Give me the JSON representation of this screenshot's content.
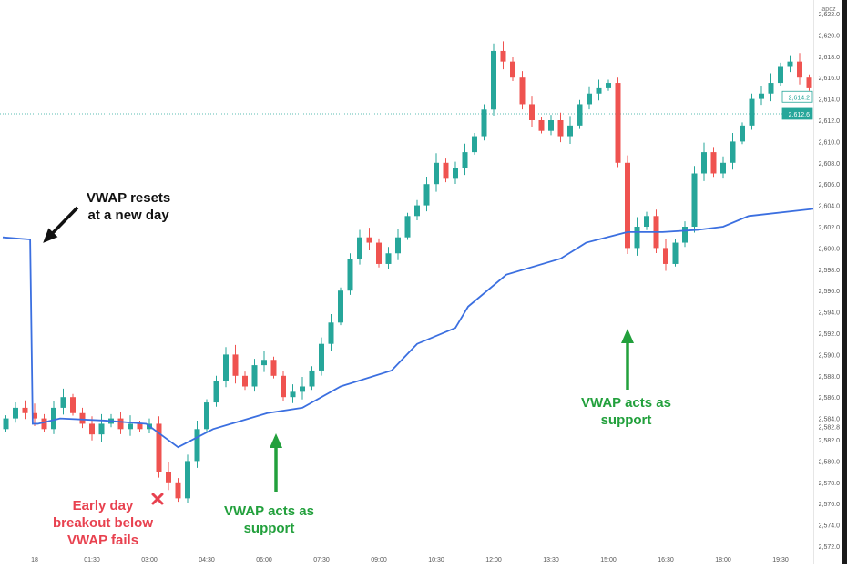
{
  "chart_data": {
    "type": "candlestick",
    "title": "",
    "y_ticks": [
      2622,
      2620,
      2618,
      2616,
      2614,
      2612,
      2610,
      2608,
      2606,
      2604,
      2602,
      2600,
      2598,
      2596,
      2594,
      2592,
      2590,
      2588,
      2586,
      2584,
      2582,
      2580,
      2578,
      2576,
      2574,
      2572
    ],
    "y_tick_labels": [
      "2,622.0",
      "2,620.0",
      "2,618.0",
      "2,616.0",
      "2,614.0",
      "2,612.0",
      "2,610.0",
      "2,608.0",
      "2,606.0",
      "2,604.0",
      "2,602.0",
      "2,600.0",
      "2,598.0",
      "2,596.0",
      "2,594.0",
      "2,592.0",
      "2,590.0",
      "2,588.0",
      "2,586.0",
      "2,584.0",
      "2,582.0",
      "2,580.0",
      "2,578.0",
      "2,576.0",
      "2,574.0",
      "2,572.0"
    ],
    "ylim": [
      2571,
      2623.5
    ],
    "x_tick_labels": [
      "18",
      "01:30",
      "03:00",
      "04:30",
      "06:00",
      "07:30",
      "09:00",
      "10:30",
      "12:00",
      "13:30",
      "15:00",
      "16:30",
      "18:00",
      "19:30"
    ],
    "x_tick_minutes": [
      0,
      90,
      180,
      270,
      360,
      450,
      540,
      630,
      720,
      810,
      900,
      990,
      1080,
      1170
    ],
    "bar_minutes": 15,
    "start_minute": -45,
    "closes": [
      2584,
      2585,
      2584.5,
      2584,
      2583,
      2585,
      2586,
      2584.5,
      2583.5,
      2582.5,
      2583.5,
      2584,
      2583,
      2583.5,
      2583,
      2583.5,
      2579,
      2578,
      2576.5,
      2580,
      2583,
      2585.5,
      2587.5,
      2590,
      2588,
      2587,
      2589,
      2589.5,
      2588,
      2586,
      2586.5,
      2587,
      2588.5,
      2591,
      2593,
      2596,
      2599,
      2601,
      2600.5,
      2598.5,
      2599.5,
      2601,
      2603,
      2604,
      2606,
      2608,
      2606.5,
      2607.5,
      2609,
      2610.5,
      2613,
      2618.5,
      2617.5,
      2616,
      2613.5,
      2612,
      2611,
      2612,
      2610.5,
      2611.5,
      2613.5,
      2614.5,
      2615,
      2615.5,
      2608,
      2600,
      2602,
      2603,
      2600,
      2598.5,
      2600.5,
      2602,
      2607,
      2609,
      2607,
      2608,
      2610,
      2611.5,
      2614,
      2614.5,
      2615.5,
      2617,
      2617.5,
      2616,
      2615,
      2615.5,
      2615.5,
      2613,
      2612.6
    ],
    "first_open": 2583,
    "vwap": {
      "name": "VWAP",
      "minutes": [
        -50,
        -7,
        -3,
        5,
        40,
        110,
        175,
        225,
        280,
        365,
        420,
        480,
        560,
        600,
        660,
        680,
        740,
        825,
        865,
        930,
        985,
        1040,
        1080,
        1120,
        1225
      ],
      "values": [
        2601,
        2600.8,
        2583.5,
        2583.5,
        2584,
        2583.8,
        2583.5,
        2581.3,
        2583,
        2584.5,
        2585,
        2587,
        2588.5,
        2591,
        2592.5,
        2594.5,
        2597.5,
        2599,
        2600.5,
        2601.5,
        2601.5,
        2601.7,
        2602,
        2603,
        2603.7
      ]
    },
    "last_price": {
      "value": 2612.6,
      "label": "2,612.6"
    },
    "prev_price": {
      "value": 2614.2,
      "label": "2,614.2"
    },
    "extra_axis_label": {
      "value": 2582.8,
      "label": "2,582.8"
    },
    "colors": {
      "up": "#26a69a",
      "down": "#ef5350",
      "vwap": "#3b6fe0"
    }
  },
  "axis_header": "apoz",
  "annotations": {
    "reset": "VWAP resets\nat a new day",
    "breakout": "Early day\nbreakout below\nVWAP fails",
    "support1": "VWAP acts as\nsupport",
    "support2": "VWAP acts as\nsupport"
  }
}
